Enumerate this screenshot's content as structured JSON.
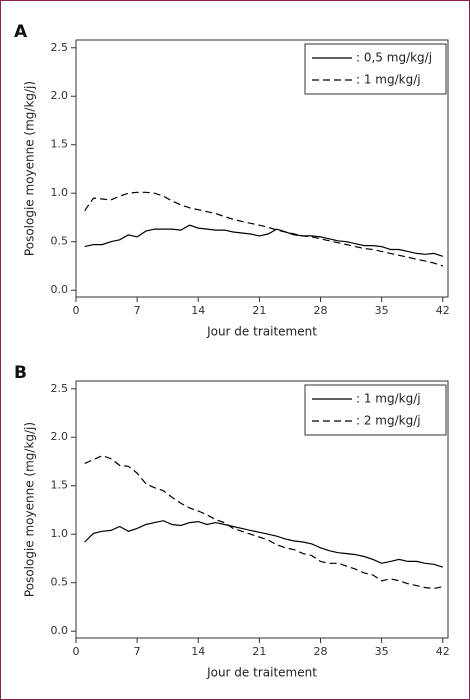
{
  "chart_data": [
    {
      "type": "line",
      "panel_label": "A",
      "x_label": "Jour de traitement",
      "y_label": "Posologie moyenne (mg/kg/j)",
      "x": [
        1,
        2,
        3,
        4,
        5,
        6,
        7,
        8,
        9,
        10,
        11,
        12,
        13,
        14,
        15,
        16,
        17,
        18,
        19,
        20,
        21,
        22,
        23,
        24,
        25,
        26,
        27,
        28,
        29,
        30,
        31,
        32,
        33,
        34,
        35,
        36,
        37,
        38,
        39,
        40,
        41,
        42
      ],
      "series": [
        {
          "name": ": 0,5 mg/kg/j",
          "color": "#000000",
          "dash": "solid",
          "values": [
            0.45,
            0.47,
            0.47,
            0.5,
            0.52,
            0.57,
            0.55,
            0.61,
            0.63,
            0.63,
            0.63,
            0.62,
            0.67,
            0.64,
            0.63,
            0.62,
            0.62,
            0.6,
            0.59,
            0.58,
            0.56,
            0.58,
            0.63,
            0.6,
            0.57,
            0.56,
            0.56,
            0.55,
            0.53,
            0.51,
            0.5,
            0.48,
            0.46,
            0.46,
            0.45,
            0.42,
            0.42,
            0.4,
            0.38,
            0.37,
            0.38,
            0.35
          ]
        },
        {
          "name": ": 1 mg/kg/j",
          "color": "#000000",
          "dash": "dashed",
          "values": [
            0.82,
            0.95,
            0.94,
            0.93,
            0.97,
            1.0,
            1.01,
            1.01,
            1.0,
            0.97,
            0.92,
            0.88,
            0.85,
            0.83,
            0.81,
            0.79,
            0.76,
            0.73,
            0.71,
            0.69,
            0.67,
            0.65,
            0.62,
            0.6,
            0.58,
            0.56,
            0.55,
            0.53,
            0.51,
            0.49,
            0.47,
            0.45,
            0.43,
            0.42,
            0.4,
            0.38,
            0.36,
            0.34,
            0.32,
            0.3,
            0.28,
            0.25
          ]
        }
      ],
      "xlim": [
        0,
        42.6
      ],
      "xticks": [
        0,
        7,
        14,
        21,
        28,
        35,
        42
      ],
      "ylim": [
        -0.07,
        2.58
      ],
      "yticks": [
        {
          "value": 0,
          "label": "0.0"
        },
        0.5,
        {
          "value": 1,
          "label": "1.0"
        },
        1.5,
        {
          "value": 2,
          "label": "2.0"
        },
        2.5
      ],
      "legend": "upper right"
    },
    {
      "type": "line",
      "panel_label": "B",
      "x_label": "Jour de traitement",
      "y_label": "Posologie moyenne (mg/kg/j)",
      "x": [
        1,
        2,
        3,
        4,
        5,
        6,
        7,
        8,
        9,
        10,
        11,
        12,
        13,
        14,
        15,
        16,
        17,
        18,
        19,
        20,
        21,
        22,
        23,
        24,
        25,
        26,
        27,
        28,
        29,
        30,
        31,
        32,
        33,
        34,
        35,
        36,
        37,
        38,
        39,
        40,
        41,
        42
      ],
      "series": [
        {
          "name": ": 1 mg/kg/j",
          "color": "#000000",
          "dash": "solid",
          "values": [
            0.92,
            1.01,
            1.03,
            1.04,
            1.08,
            1.03,
            1.06,
            1.1,
            1.12,
            1.14,
            1.1,
            1.09,
            1.12,
            1.13,
            1.1,
            1.12,
            1.1,
            1.08,
            1.06,
            1.04,
            1.02,
            1.0,
            0.98,
            0.95,
            0.93,
            0.92,
            0.9,
            0.86,
            0.83,
            0.81,
            0.8,
            0.79,
            0.77,
            0.74,
            0.7,
            0.72,
            0.74,
            0.72,
            0.72,
            0.7,
            0.69,
            0.66
          ]
        },
        {
          "name": ": 2 mg/kg/j",
          "color": "#000000",
          "dash": "dashed",
          "values": [
            1.73,
            1.77,
            1.81,
            1.78,
            1.71,
            1.7,
            1.63,
            1.52,
            1.48,
            1.45,
            1.38,
            1.32,
            1.27,
            1.24,
            1.2,
            1.15,
            1.12,
            1.06,
            1.03,
            1.0,
            0.97,
            0.94,
            0.89,
            0.86,
            0.84,
            0.8,
            0.78,
            0.72,
            0.7,
            0.7,
            0.67,
            0.64,
            0.6,
            0.58,
            0.52,
            0.54,
            0.52,
            0.49,
            0.47,
            0.45,
            0.44,
            0.46
          ]
        }
      ],
      "xlim": [
        0,
        42.6
      ],
      "xticks": [
        0,
        7,
        14,
        21,
        28,
        35,
        42
      ],
      "ylim": [
        -0.07,
        2.58
      ],
      "yticks": [
        {
          "value": 0,
          "label": "0.0"
        },
        0.5,
        {
          "value": 1,
          "label": "1.0"
        },
        1.5,
        {
          "value": 2,
          "label": "2.0"
        },
        2.5
      ],
      "legend": "upper right"
    }
  ]
}
